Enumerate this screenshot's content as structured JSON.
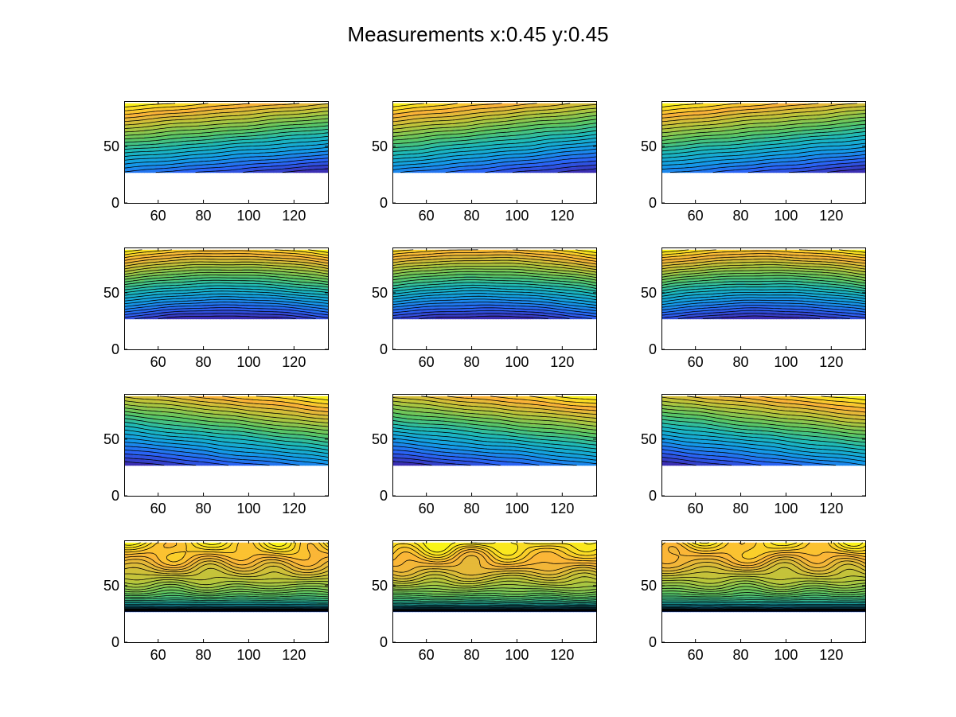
{
  "figure": {
    "title": "Measurements x:0.45 y:0.45"
  },
  "colors": {
    "colormap": [
      "#3e26a8",
      "#2a63f5",
      "#139ee6",
      "#1cb9ba",
      "#5cc763",
      "#b9c63a",
      "#fbb338",
      "#f9fb15"
    ],
    "contour_line": "#000000",
    "axes_frame": "#000000",
    "background": "#ffffff"
  },
  "chart_data": [
    {
      "type": "heatmap",
      "panel": "1-1",
      "variant": "linear-tilt",
      "tilt": 0.45,
      "noise": 0.012,
      "xlim": [
        45,
        135
      ],
      "ylim": [
        0,
        90
      ],
      "data_ylim": [
        27,
        88
      ],
      "xticks": [
        60,
        80,
        100,
        120
      ],
      "yticks": [
        0,
        50
      ],
      "contour_levels": 24,
      "grid": false
    },
    {
      "type": "heatmap",
      "panel": "1-2",
      "variant": "linear-tilt",
      "tilt": 0.55,
      "noise": 0.014,
      "xlim": [
        45,
        135
      ],
      "ylim": [
        0,
        90
      ],
      "data_ylim": [
        27,
        88
      ],
      "xticks": [
        60,
        80,
        100,
        120
      ],
      "yticks": [
        0,
        50
      ],
      "contour_levels": 24,
      "grid": false
    },
    {
      "type": "heatmap",
      "panel": "1-3",
      "variant": "linear-tilt",
      "tilt": 0.5,
      "noise": 0.012,
      "xlim": [
        45,
        135
      ],
      "ylim": [
        0,
        90
      ],
      "data_ylim": [
        27,
        88
      ],
      "xticks": [
        60,
        80,
        100,
        120
      ],
      "yticks": [
        0,
        50
      ],
      "contour_levels": 24,
      "grid": false
    },
    {
      "type": "heatmap",
      "panel": "2-1",
      "variant": "bowl",
      "tilt": 0.0,
      "noise": 0.01,
      "xlim": [
        45,
        135
      ],
      "ylim": [
        0,
        90
      ],
      "data_ylim": [
        27,
        88
      ],
      "xticks": [
        60,
        80,
        100,
        120
      ],
      "yticks": [
        0,
        50
      ],
      "contour_levels": 28,
      "grid": false
    },
    {
      "type": "heatmap",
      "panel": "2-2",
      "variant": "bowl",
      "tilt": 0.05,
      "noise": 0.01,
      "xlim": [
        45,
        135
      ],
      "ylim": [
        0,
        90
      ],
      "data_ylim": [
        27,
        88
      ],
      "xticks": [
        60,
        80,
        100,
        120
      ],
      "yticks": [
        0,
        50
      ],
      "contour_levels": 28,
      "grid": false
    },
    {
      "type": "heatmap",
      "panel": "2-3",
      "variant": "bowl",
      "tilt": 0.0,
      "noise": 0.01,
      "xlim": [
        45,
        135
      ],
      "ylim": [
        0,
        90
      ],
      "data_ylim": [
        27,
        88
      ],
      "xticks": [
        60,
        80,
        100,
        120
      ],
      "yticks": [
        0,
        50
      ],
      "contour_levels": 28,
      "grid": false
    },
    {
      "type": "heatmap",
      "panel": "3-1",
      "variant": "linear-tilt",
      "tilt": -0.6,
      "noise": 0.014,
      "xlim": [
        45,
        135
      ],
      "ylim": [
        0,
        90
      ],
      "data_ylim": [
        27,
        88
      ],
      "xticks": [
        60,
        80,
        100,
        120
      ],
      "yticks": [
        0,
        50
      ],
      "contour_levels": 24,
      "grid": false
    },
    {
      "type": "heatmap",
      "panel": "3-2",
      "variant": "linear-tilt",
      "tilt": -0.55,
      "noise": 0.014,
      "xlim": [
        45,
        135
      ],
      "ylim": [
        0,
        90
      ],
      "data_ylim": [
        27,
        88
      ],
      "xticks": [
        60,
        80,
        100,
        120
      ],
      "yticks": [
        0,
        50
      ],
      "contour_levels": 24,
      "grid": false
    },
    {
      "type": "heatmap",
      "panel": "3-3",
      "variant": "linear-tilt",
      "tilt": -0.6,
      "noise": 0.014,
      "xlim": [
        45,
        135
      ],
      "ylim": [
        0,
        90
      ],
      "data_ylim": [
        27,
        88
      ],
      "xticks": [
        60,
        80,
        100,
        120
      ],
      "yticks": [
        0,
        50
      ],
      "contour_levels": 24,
      "grid": false
    },
    {
      "type": "heatmap",
      "panel": "4-1",
      "variant": "wavy-top",
      "tilt": 0.0,
      "noise": 0.05,
      "xlim": [
        45,
        135
      ],
      "ylim": [
        0,
        90
      ],
      "data_ylim": [
        27,
        88
      ],
      "xticks": [
        60,
        80,
        100,
        120
      ],
      "yticks": [
        0,
        50
      ],
      "contour_levels": 40,
      "grid": false
    },
    {
      "type": "heatmap",
      "panel": "4-2",
      "variant": "wavy-top",
      "tilt": 0.0,
      "noise": 0.05,
      "xlim": [
        45,
        135
      ],
      "ylim": [
        0,
        90
      ],
      "data_ylim": [
        27,
        88
      ],
      "xticks": [
        60,
        80,
        100,
        120
      ],
      "yticks": [
        0,
        50
      ],
      "contour_levels": 40,
      "grid": false
    },
    {
      "type": "heatmap",
      "panel": "4-3",
      "variant": "wavy-top",
      "tilt": 0.0,
      "noise": 0.05,
      "xlim": [
        45,
        135
      ],
      "ylim": [
        0,
        90
      ],
      "data_ylim": [
        27,
        88
      ],
      "xticks": [
        60,
        80,
        100,
        120
      ],
      "yticks": [
        0,
        50
      ],
      "contour_levels": 40,
      "grid": false
    }
  ]
}
